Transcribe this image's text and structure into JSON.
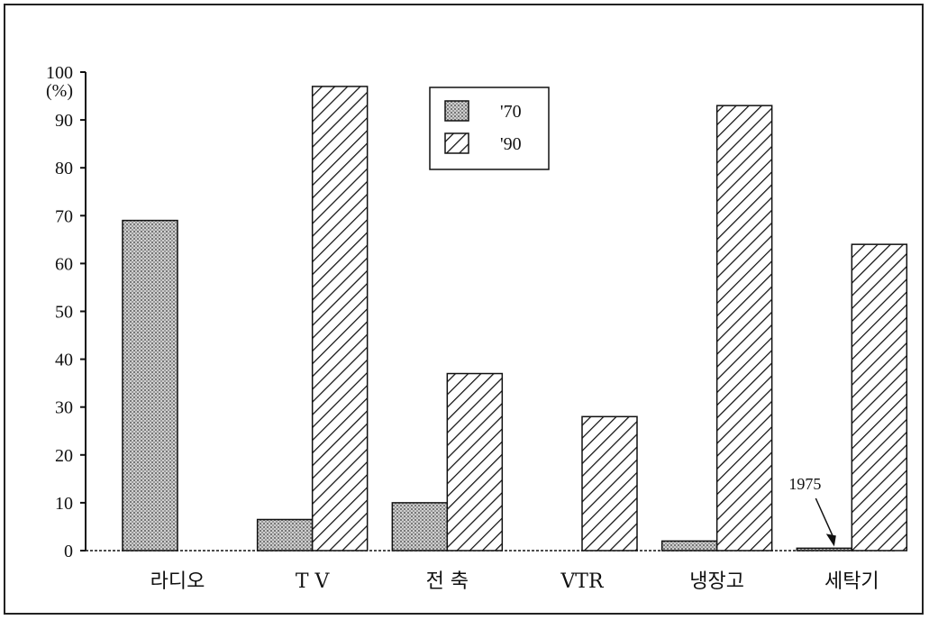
{
  "chart_data": {
    "type": "bar",
    "categories": [
      "라디오",
      "T V",
      "전  축",
      "VTR",
      "냉장고",
      "세탁기"
    ],
    "series": [
      {
        "name": "'70",
        "values": [
          69,
          6.5,
          10,
          0,
          2,
          0.5
        ],
        "pattern": "dots",
        "color": "#8a8a8a"
      },
      {
        "name": "'90",
        "values": [
          0,
          97,
          37,
          28,
          93,
          64
        ],
        "pattern": "hatch",
        "color": "#222222"
      }
    ],
    "ylim": [
      0,
      100
    ],
    "yticks": [
      0,
      10,
      20,
      30,
      40,
      50,
      60,
      70,
      80,
      90,
      100
    ],
    "yunit": "(%)",
    "legend_position": "top-center",
    "annotation": {
      "text": "1975",
      "category": "세탁기",
      "series": "'70"
    },
    "grid": false
  }
}
